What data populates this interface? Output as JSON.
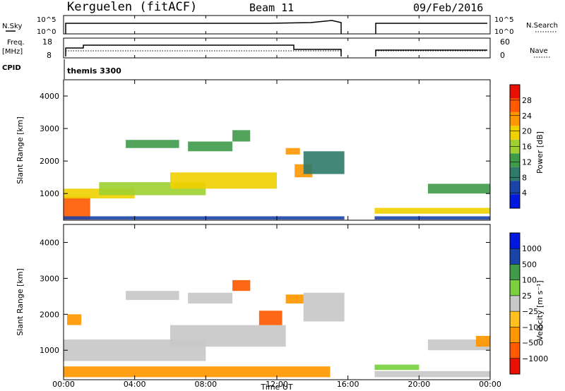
{
  "header": {
    "station": "Kerguelen (fitACF)",
    "beam": "Beam 11",
    "date": "09/Feb/2016"
  },
  "noise_panel": {
    "left_label": "N.Sky",
    "right_label": "N.Search",
    "ticks": [
      "10^5",
      "10^0"
    ]
  },
  "freq_panel": {
    "left_label_1": "Freq.",
    "left_label_2": "[MHz]",
    "right_label": "Nave",
    "left_ticks": [
      "18",
      "8"
    ],
    "right_ticks": [
      "60",
      "0"
    ]
  },
  "cpid_panel": {
    "label": "CPID",
    "program": "themis 3300"
  },
  "colors": {
    "power_scale": [
      "#0018e0",
      "#1a44a8",
      "#2f7a6a",
      "#3f9a4a",
      "#9fd030",
      "#f0d000",
      "#ff9800",
      "#ff5a00",
      "#e81000"
    ],
    "velocity_scale": [
      "#e81000",
      "#ff5a00",
      "#ff9800",
      "#ffc020",
      "#c8c8c8",
      "#7bd040",
      "#3f9a4a",
      "#1a44a8",
      "#0018e0"
    ],
    "ground_scatter": "#c8c8c8"
  },
  "chart_data": [
    {
      "type": "heatmap",
      "name_panel": "power",
      "ylabel": "Slant Range [km]",
      "ylim": [
        180,
        4500
      ],
      "yticks": [
        "1000",
        "2000",
        "3000",
        "4000"
      ],
      "colorbar_label": "Power [dB]",
      "colorbar_ticks": [
        "4",
        "8",
        "12",
        "16",
        "20",
        "24",
        "28"
      ],
      "colorbar_range": [
        0,
        32
      ],
      "bands": [
        {
          "t0": 0,
          "t1": 1.5,
          "r0": 200,
          "r1": 900,
          "level": 28
        },
        {
          "t0": 0,
          "t1": 4,
          "r0": 850,
          "r1": 1150,
          "level": 20
        },
        {
          "t0": 2,
          "t1": 8,
          "r0": 950,
          "r1": 1350,
          "level": 16
        },
        {
          "t0": 6,
          "t1": 12,
          "r0": 1150,
          "r1": 1650,
          "level": 20
        },
        {
          "t0": 3.5,
          "t1": 6.5,
          "r0": 2400,
          "r1": 2650,
          "level": 12
        },
        {
          "t0": 7,
          "t1": 9.5,
          "r0": 2300,
          "r1": 2600,
          "level": 14
        },
        {
          "t0": 9.5,
          "t1": 10.5,
          "r0": 2600,
          "r1": 2950,
          "level": 12
        },
        {
          "t0": 12.5,
          "t1": 13.3,
          "r0": 2200,
          "r1": 2400,
          "level": 24
        },
        {
          "t0": 13,
          "t1": 14,
          "r0": 1500,
          "r1": 1900,
          "level": 22
        },
        {
          "t0": 13.5,
          "t1": 15.8,
          "r0": 1600,
          "r1": 2300,
          "level": 10
        },
        {
          "t0": 0,
          "t1": 15.8,
          "r0": 200,
          "r1": 300,
          "level": 6
        },
        {
          "t0": 17.5,
          "t1": 24,
          "r0": 380,
          "r1": 560,
          "level": 18
        },
        {
          "t0": 17.5,
          "t1": 24,
          "r0": 200,
          "r1": 300,
          "level": 6
        },
        {
          "t0": 20.5,
          "t1": 24,
          "r0": 1000,
          "r1": 1300,
          "level": 14
        }
      ]
    },
    {
      "type": "heatmap",
      "name_panel": "velocity",
      "ylabel": "Slant Range [km]",
      "ylim": [
        180,
        4500
      ],
      "yticks": [
        "1000",
        "2000",
        "3000",
        "4000"
      ],
      "xlabel": "Time UT",
      "xlim": [
        0,
        24
      ],
      "xticks": [
        "00:00",
        "04:00",
        "08:00",
        "12:00",
        "16:00",
        "20:00",
        "00:00"
      ],
      "colorbar_label": "Velocity [m s⁻¹]",
      "colorbar_ticks": [
        "1000",
        "500",
        "100",
        "25",
        "−25",
        "−100",
        "−500",
        "−1000"
      ],
      "bands": [
        {
          "t0": 0,
          "t1": 8,
          "r0": 700,
          "r1": 1300,
          "kind": "ground"
        },
        {
          "t0": 6,
          "t1": 12.5,
          "r0": 1100,
          "r1": 1700,
          "kind": "ground"
        },
        {
          "t0": 3.5,
          "t1": 6.5,
          "r0": 2400,
          "r1": 2650,
          "kind": "ground"
        },
        {
          "t0": 7,
          "t1": 9.5,
          "r0": 2300,
          "r1": 2600,
          "kind": "ground"
        },
        {
          "t0": 13.5,
          "t1": 15.8,
          "r0": 1800,
          "r1": 2600,
          "kind": "ground"
        },
        {
          "t0": 9.5,
          "t1": 10.5,
          "r0": 2650,
          "r1": 2950,
          "velocity": -500
        },
        {
          "t0": 11,
          "t1": 12.3,
          "r0": 1700,
          "r1": 2100,
          "velocity": -500
        },
        {
          "t0": 12.5,
          "t1": 13.5,
          "r0": 2300,
          "r1": 2550,
          "velocity": -100
        },
        {
          "t0": 0.2,
          "t1": 1,
          "r0": 1700,
          "r1": 2000,
          "velocity": -100
        },
        {
          "t0": 0,
          "t1": 15,
          "r0": 250,
          "r1": 550,
          "velocity": -100
        },
        {
          "t0": 17.5,
          "t1": 20,
          "r0": 450,
          "r1": 600,
          "velocity": 100
        },
        {
          "t0": 17.5,
          "t1": 24,
          "r0": 250,
          "r1": 420,
          "kind": "ground"
        },
        {
          "t0": 20.5,
          "t1": 24,
          "r0": 1000,
          "r1": 1300,
          "kind": "ground"
        },
        {
          "t0": 23.2,
          "t1": 24,
          "r0": 1100,
          "r1": 1400,
          "velocity": -100
        }
      ]
    }
  ]
}
